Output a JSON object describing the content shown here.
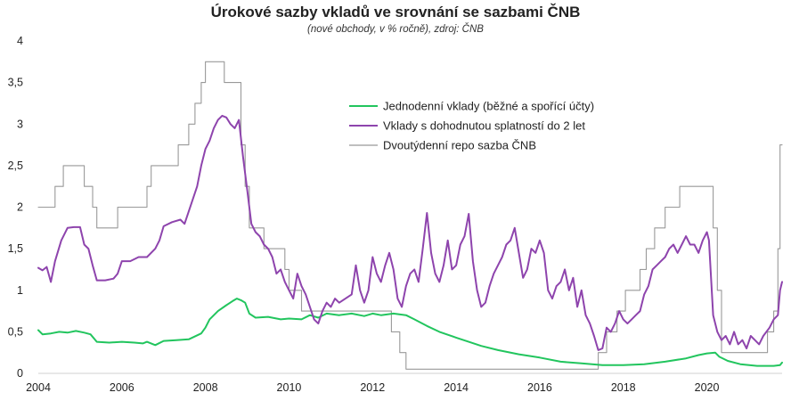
{
  "chart_data": {
    "type": "line",
    "title": "Úrokové sazby vkladů ve srovnání se sazbami ČNB",
    "subtitle": "(nové obchody, v % ročně), zdroj: ČNB",
    "xlabel": "",
    "ylabel": "",
    "xlim": [
      2004.0,
      2021.8
    ],
    "ylim": [
      0,
      4
    ],
    "x_ticks": [
      2004,
      2006,
      2008,
      2010,
      2012,
      2014,
      2016,
      2018,
      2020
    ],
    "x_tick_labels": [
      "2004",
      "2006",
      "2008",
      "2010",
      "2012",
      "2014",
      "2016",
      "2018",
      "2020"
    ],
    "y_ticks": [
      0,
      0.5,
      1,
      1.5,
      2,
      2.5,
      3,
      3.5,
      4
    ],
    "y_tick_labels": [
      "0",
      "0,5",
      "1",
      "1,5",
      "2",
      "2,5",
      "3",
      "3,5",
      "4"
    ],
    "grid": false,
    "legend_position": "top-center-right",
    "series": [
      {
        "name": "Jednodenní vklady (běžné a spořící účty)",
        "color": "#22c55e",
        "step": false,
        "points": [
          [
            2004.0,
            0.52
          ],
          [
            2004.1,
            0.47
          ],
          [
            2004.3,
            0.48
          ],
          [
            2004.5,
            0.5
          ],
          [
            2004.7,
            0.49
          ],
          [
            2004.9,
            0.51
          ],
          [
            2005.1,
            0.49
          ],
          [
            2005.25,
            0.47
          ],
          [
            2005.4,
            0.38
          ],
          [
            2005.7,
            0.37
          ],
          [
            2006.0,
            0.38
          ],
          [
            2006.3,
            0.37
          ],
          [
            2006.5,
            0.36
          ],
          [
            2006.6,
            0.38
          ],
          [
            2006.8,
            0.34
          ],
          [
            2007.0,
            0.39
          ],
          [
            2007.3,
            0.4
          ],
          [
            2007.6,
            0.41
          ],
          [
            2007.9,
            0.48
          ],
          [
            2008.0,
            0.55
          ],
          [
            2008.1,
            0.65
          ],
          [
            2008.3,
            0.75
          ],
          [
            2008.5,
            0.82
          ],
          [
            2008.65,
            0.87
          ],
          [
            2008.75,
            0.9
          ],
          [
            2008.85,
            0.88
          ],
          [
            2008.95,
            0.85
          ],
          [
            2009.05,
            0.72
          ],
          [
            2009.2,
            0.67
          ],
          [
            2009.5,
            0.68
          ],
          [
            2009.8,
            0.65
          ],
          [
            2010.0,
            0.66
          ],
          [
            2010.3,
            0.65
          ],
          [
            2010.5,
            0.7
          ],
          [
            2010.7,
            0.67
          ],
          [
            2010.9,
            0.72
          ],
          [
            2011.2,
            0.7
          ],
          [
            2011.5,
            0.72
          ],
          [
            2011.8,
            0.69
          ],
          [
            2012.0,
            0.72
          ],
          [
            2012.2,
            0.7
          ],
          [
            2012.5,
            0.72
          ],
          [
            2012.8,
            0.7
          ],
          [
            2013.0,
            0.65
          ],
          [
            2013.3,
            0.57
          ],
          [
            2013.6,
            0.5
          ],
          [
            2014.0,
            0.43
          ],
          [
            2014.3,
            0.38
          ],
          [
            2014.6,
            0.33
          ],
          [
            2015.0,
            0.28
          ],
          [
            2015.5,
            0.23
          ],
          [
            2016.0,
            0.19
          ],
          [
            2016.5,
            0.14
          ],
          [
            2017.0,
            0.12
          ],
          [
            2017.5,
            0.1
          ],
          [
            2018.0,
            0.1
          ],
          [
            2018.5,
            0.11
          ],
          [
            2019.0,
            0.14
          ],
          [
            2019.5,
            0.18
          ],
          [
            2019.8,
            0.22
          ],
          [
            2020.0,
            0.24
          ],
          [
            2020.2,
            0.25
          ],
          [
            2020.3,
            0.2
          ],
          [
            2020.5,
            0.15
          ],
          [
            2020.8,
            0.11
          ],
          [
            2021.2,
            0.09
          ],
          [
            2021.6,
            0.09
          ],
          [
            2021.75,
            0.1
          ],
          [
            2021.8,
            0.13
          ]
        ]
      },
      {
        "name": "Vklady s dohodnutou splatností do 2 let",
        "color": "#8e44ad",
        "step": false,
        "points": [
          [
            2004.0,
            1.27
          ],
          [
            2004.1,
            1.24
          ],
          [
            2004.2,
            1.28
          ],
          [
            2004.3,
            1.1
          ],
          [
            2004.4,
            1.35
          ],
          [
            2004.55,
            1.6
          ],
          [
            2004.7,
            1.75
          ],
          [
            2004.85,
            1.76
          ],
          [
            2005.0,
            1.76
          ],
          [
            2005.1,
            1.55
          ],
          [
            2005.2,
            1.5
          ],
          [
            2005.3,
            1.3
          ],
          [
            2005.4,
            1.12
          ],
          [
            2005.6,
            1.12
          ],
          [
            2005.8,
            1.14
          ],
          [
            2005.9,
            1.2
          ],
          [
            2006.0,
            1.35
          ],
          [
            2006.2,
            1.35
          ],
          [
            2006.4,
            1.4
          ],
          [
            2006.6,
            1.4
          ],
          [
            2006.8,
            1.5
          ],
          [
            2006.9,
            1.6
          ],
          [
            2007.0,
            1.77
          ],
          [
            2007.2,
            1.82
          ],
          [
            2007.4,
            1.85
          ],
          [
            2007.5,
            1.8
          ],
          [
            2007.6,
            1.95
          ],
          [
            2007.7,
            2.1
          ],
          [
            2007.8,
            2.25
          ],
          [
            2007.9,
            2.5
          ],
          [
            2008.0,
            2.7
          ],
          [
            2008.1,
            2.8
          ],
          [
            2008.2,
            2.95
          ],
          [
            2008.3,
            3.05
          ],
          [
            2008.4,
            3.1
          ],
          [
            2008.5,
            3.08
          ],
          [
            2008.6,
            3.0
          ],
          [
            2008.7,
            2.95
          ],
          [
            2008.8,
            3.05
          ],
          [
            2008.9,
            2.6
          ],
          [
            2009.0,
            2.2
          ],
          [
            2009.1,
            1.8
          ],
          [
            2009.2,
            1.7
          ],
          [
            2009.3,
            1.65
          ],
          [
            2009.4,
            1.55
          ],
          [
            2009.5,
            1.5
          ],
          [
            2009.6,
            1.4
          ],
          [
            2009.7,
            1.2
          ],
          [
            2009.8,
            1.25
          ],
          [
            2009.9,
            1.1
          ],
          [
            2010.0,
            1.0
          ],
          [
            2010.1,
            0.9
          ],
          [
            2010.2,
            1.2
          ],
          [
            2010.3,
            1.05
          ],
          [
            2010.4,
            0.95
          ],
          [
            2010.5,
            0.8
          ],
          [
            2010.6,
            0.65
          ],
          [
            2010.7,
            0.6
          ],
          [
            2010.8,
            0.75
          ],
          [
            2010.9,
            0.85
          ],
          [
            2011.0,
            0.8
          ],
          [
            2011.1,
            0.9
          ],
          [
            2011.2,
            0.85
          ],
          [
            2011.35,
            0.9
          ],
          [
            2011.5,
            0.95
          ],
          [
            2011.6,
            1.3
          ],
          [
            2011.7,
            1.0
          ],
          [
            2011.8,
            0.85
          ],
          [
            2011.9,
            1.0
          ],
          [
            2012.0,
            1.4
          ],
          [
            2012.1,
            1.2
          ],
          [
            2012.2,
            1.1
          ],
          [
            2012.3,
            1.3
          ],
          [
            2012.4,
            1.45
          ],
          [
            2012.5,
            1.25
          ],
          [
            2012.6,
            0.9
          ],
          [
            2012.7,
            0.8
          ],
          [
            2012.8,
            1.05
          ],
          [
            2012.9,
            1.2
          ],
          [
            2013.0,
            1.25
          ],
          [
            2013.1,
            1.1
          ],
          [
            2013.2,
            1.5
          ],
          [
            2013.3,
            1.93
          ],
          [
            2013.4,
            1.45
          ],
          [
            2013.5,
            1.2
          ],
          [
            2013.6,
            1.1
          ],
          [
            2013.7,
            1.3
          ],
          [
            2013.8,
            1.6
          ],
          [
            2013.9,
            1.25
          ],
          [
            2014.0,
            1.3
          ],
          [
            2014.1,
            1.55
          ],
          [
            2014.2,
            1.65
          ],
          [
            2014.3,
            1.92
          ],
          [
            2014.4,
            1.35
          ],
          [
            2014.5,
            1.0
          ],
          [
            2014.6,
            0.8
          ],
          [
            2014.7,
            0.85
          ],
          [
            2014.8,
            1.05
          ],
          [
            2014.9,
            1.2
          ],
          [
            2015.0,
            1.3
          ],
          [
            2015.1,
            1.4
          ],
          [
            2015.2,
            1.55
          ],
          [
            2015.3,
            1.6
          ],
          [
            2015.4,
            1.75
          ],
          [
            2015.5,
            1.45
          ],
          [
            2015.6,
            1.15
          ],
          [
            2015.7,
            1.25
          ],
          [
            2015.8,
            1.5
          ],
          [
            2015.9,
            1.45
          ],
          [
            2016.0,
            1.6
          ],
          [
            2016.1,
            1.45
          ],
          [
            2016.2,
            1.0
          ],
          [
            2016.3,
            0.9
          ],
          [
            2016.4,
            1.05
          ],
          [
            2016.5,
            1.1
          ],
          [
            2016.6,
            1.25
          ],
          [
            2016.7,
            1.0
          ],
          [
            2016.8,
            1.15
          ],
          [
            2016.9,
            0.8
          ],
          [
            2017.0,
            1.0
          ],
          [
            2017.1,
            0.7
          ],
          [
            2017.2,
            0.6
          ],
          [
            2017.3,
            0.45
          ],
          [
            2017.4,
            0.28
          ],
          [
            2017.5,
            0.3
          ],
          [
            2017.6,
            0.55
          ],
          [
            2017.7,
            0.5
          ],
          [
            2017.8,
            0.6
          ],
          [
            2017.9,
            0.75
          ],
          [
            2018.0,
            0.65
          ],
          [
            2018.1,
            0.6
          ],
          [
            2018.2,
            0.65
          ],
          [
            2018.3,
            0.7
          ],
          [
            2018.4,
            0.75
          ],
          [
            2018.5,
            0.95
          ],
          [
            2018.6,
            1.05
          ],
          [
            2018.7,
            1.25
          ],
          [
            2018.8,
            1.3
          ],
          [
            2018.9,
            1.35
          ],
          [
            2019.0,
            1.4
          ],
          [
            2019.1,
            1.5
          ],
          [
            2019.2,
            1.55
          ],
          [
            2019.3,
            1.45
          ],
          [
            2019.4,
            1.55
          ],
          [
            2019.5,
            1.65
          ],
          [
            2019.6,
            1.55
          ],
          [
            2019.7,
            1.55
          ],
          [
            2019.8,
            1.45
          ],
          [
            2019.9,
            1.6
          ],
          [
            2020.0,
            1.7
          ],
          [
            2020.05,
            1.6
          ],
          [
            2020.15,
            0.7
          ],
          [
            2020.25,
            0.5
          ],
          [
            2020.35,
            0.4
          ],
          [
            2020.45,
            0.45
          ],
          [
            2020.55,
            0.35
          ],
          [
            2020.65,
            0.5
          ],
          [
            2020.75,
            0.35
          ],
          [
            2020.85,
            0.4
          ],
          [
            2020.95,
            0.3
          ],
          [
            2021.05,
            0.45
          ],
          [
            2021.15,
            0.4
          ],
          [
            2021.25,
            0.35
          ],
          [
            2021.35,
            0.45
          ],
          [
            2021.5,
            0.55
          ],
          [
            2021.6,
            0.65
          ],
          [
            2021.7,
            0.7
          ],
          [
            2021.75,
            1.0
          ],
          [
            2021.8,
            1.1
          ]
        ]
      },
      {
        "name": "Dvoutýdenní repo sazba ČNB",
        "color": "#999999",
        "step": true,
        "points": [
          [
            2004.0,
            2.0
          ],
          [
            2004.4,
            2.25
          ],
          [
            2004.6,
            2.5
          ],
          [
            2005.1,
            2.25
          ],
          [
            2005.3,
            2.0
          ],
          [
            2005.4,
            1.75
          ],
          [
            2005.9,
            2.0
          ],
          [
            2006.6,
            2.25
          ],
          [
            2006.7,
            2.5
          ],
          [
            2007.35,
            2.75
          ],
          [
            2007.6,
            3.0
          ],
          [
            2007.75,
            3.25
          ],
          [
            2007.9,
            3.5
          ],
          [
            2008.0,
            3.75
          ],
          [
            2008.45,
            3.5
          ],
          [
            2008.7,
            3.5
          ],
          [
            2008.85,
            2.75
          ],
          [
            2008.95,
            2.25
          ],
          [
            2009.05,
            1.75
          ],
          [
            2009.4,
            1.5
          ],
          [
            2009.9,
            1.25
          ],
          [
            2010.0,
            1.0
          ],
          [
            2010.3,
            0.75
          ],
          [
            2012.45,
            0.5
          ],
          [
            2012.65,
            0.25
          ],
          [
            2012.8,
            0.05
          ],
          [
            2017.4,
            0.25
          ],
          [
            2017.6,
            0.5
          ],
          [
            2017.85,
            0.75
          ],
          [
            2018.05,
            1.0
          ],
          [
            2018.4,
            1.25
          ],
          [
            2018.55,
            1.5
          ],
          [
            2018.75,
            1.75
          ],
          [
            2019.0,
            2.0
          ],
          [
            2019.35,
            2.25
          ],
          [
            2020.15,
            1.75
          ],
          [
            2020.25,
            1.0
          ],
          [
            2020.35,
            0.25
          ],
          [
            2021.45,
            0.5
          ],
          [
            2021.6,
            0.75
          ],
          [
            2021.7,
            1.5
          ],
          [
            2021.75,
            2.75
          ],
          [
            2021.8,
            2.75
          ]
        ]
      }
    ]
  }
}
